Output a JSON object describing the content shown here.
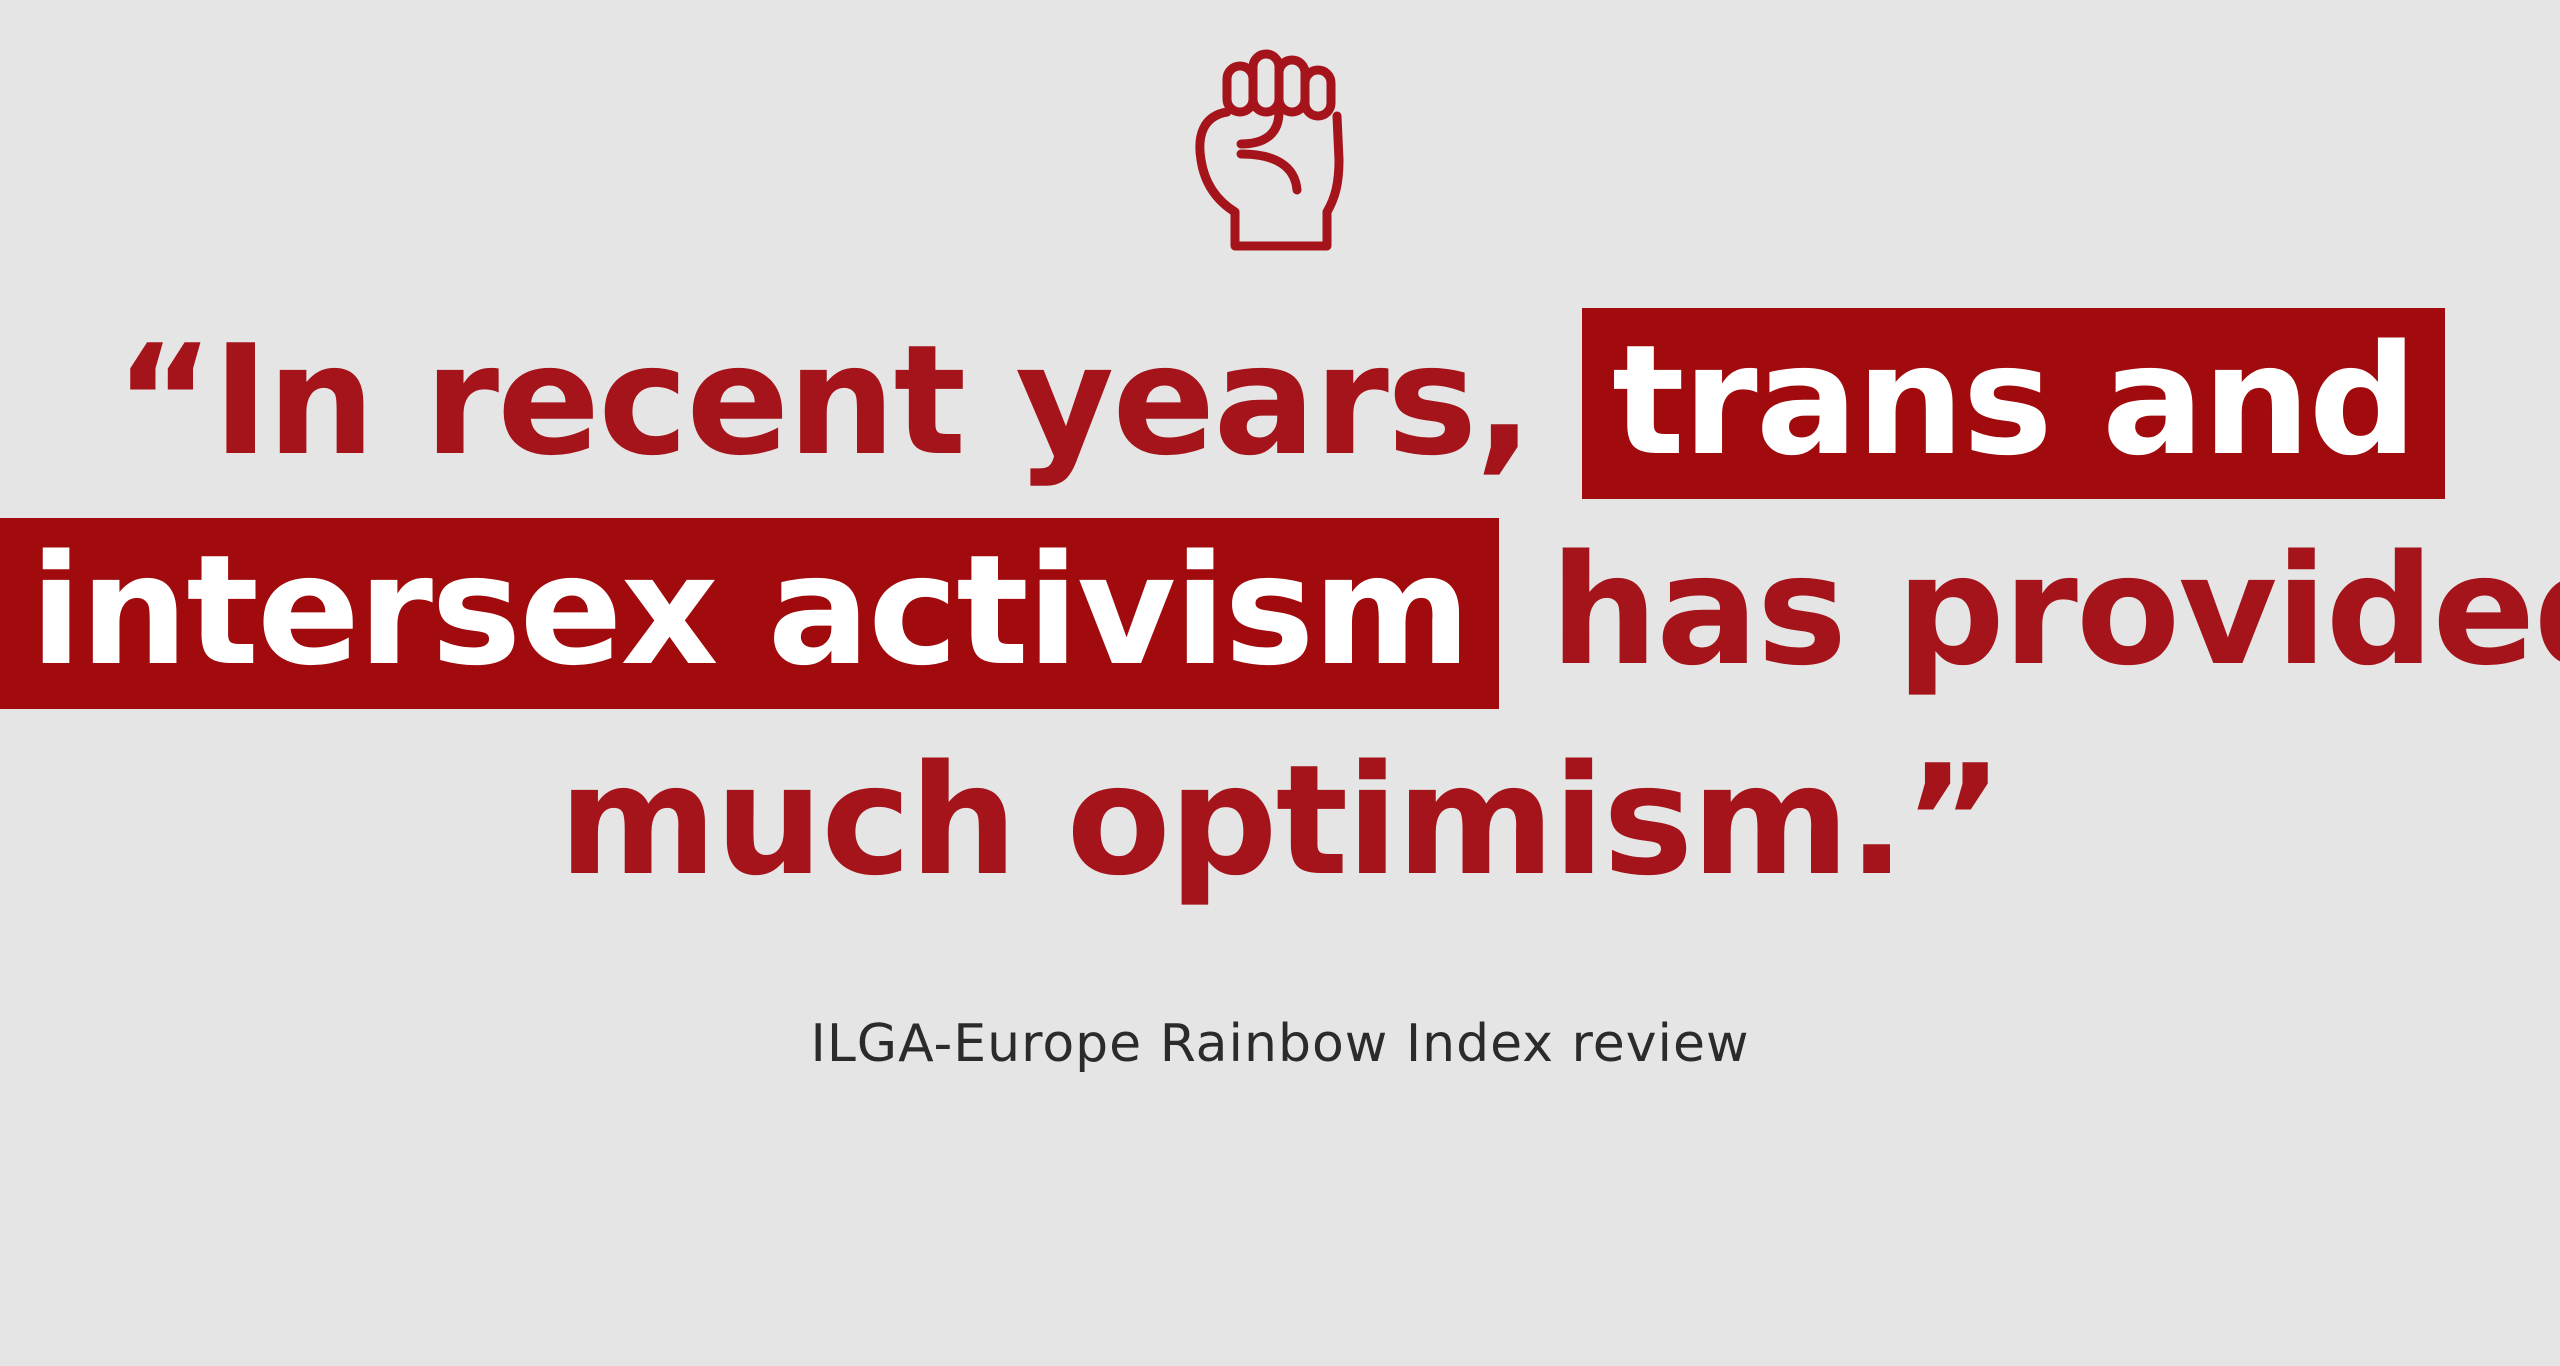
{
  "quote": {
    "line1_before": "“In recent years, ",
    "line1_highlight": "trans and",
    "line2_highlight": "intersex activism",
    "line2_after": " has provided",
    "line3": "much optimism.”"
  },
  "source": "ILGA-Europe Rainbow Index review",
  "icon": "raised-fist-icon",
  "colors": {
    "background": "#e5e5e5",
    "accent": "#a5141a",
    "highlight_bg": "#a10b0e",
    "highlight_text": "#ffffff",
    "source_text": "#2b2b2b"
  }
}
